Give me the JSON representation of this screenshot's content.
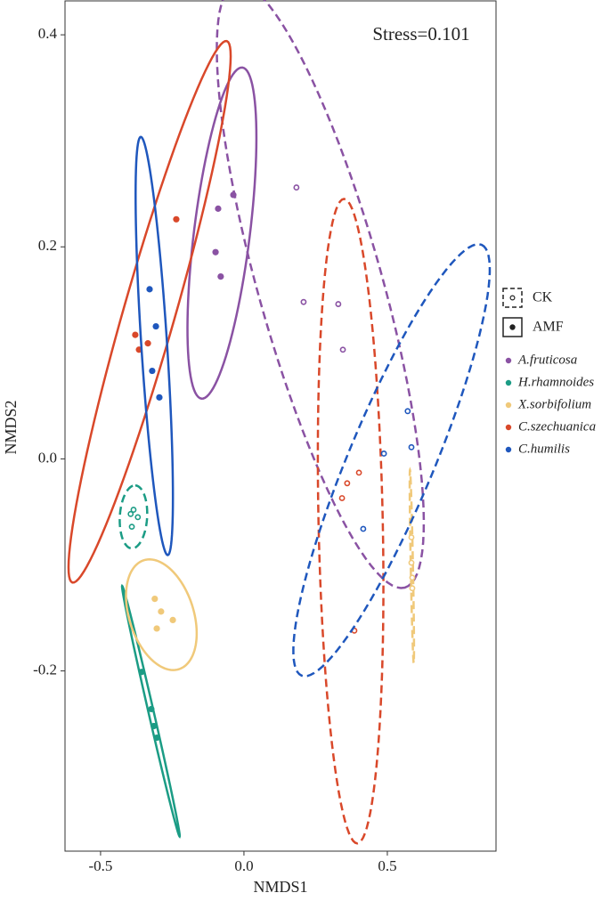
{
  "chart_data": {
    "type": "scatter",
    "annotation": "Stress=0.101",
    "x_label": "NMDS1",
    "y_label": "NMDS2",
    "xlim": [
      -0.624,
      0.879
    ],
    "ylim": [
      -0.37,
      0.432
    ],
    "xticks": [
      -0.5,
      {
        "value": 0,
        "label": "0.0"
      },
      0.5
    ],
    "yticks": [
      -0.2,
      {
        "value": 0,
        "label": "0.0"
      },
      0.2,
      0.4
    ],
    "grid": false,
    "treatments": [
      {
        "name": "CK",
        "dashed": true,
        "filled": false
      },
      {
        "name": "AMF",
        "dashed": false,
        "filled": true
      }
    ],
    "series": [
      {
        "name": "A.fruticosa",
        "color": "#8a52a3",
        "groups": [
          {
            "x": [
              0.183,
              0.208,
              0.329,
              0.345
            ],
            "y": [
              0.256,
              0.148,
              0.146,
              0.103
            ]
          },
          {
            "x": [
              -0.09,
              -0.037,
              -0.099,
              -0.081
            ],
            "y": [
              0.236,
              0.249,
              0.195,
              0.172
            ]
          }
        ]
      },
      {
        "name": "H.rhamnoides",
        "color": "#1b9c85",
        "groups": [
          {
            "x": [
              -0.385,
              -0.37,
              -0.391,
              -0.395
            ],
            "y": [
              -0.048,
              -0.055,
              -0.064,
              -0.052
            ]
          },
          {
            "x": [
              -0.357,
              -0.323,
              -0.314,
              -0.304
            ],
            "y": [
              -0.201,
              -0.236,
              -0.252,
              -0.263
            ]
          }
        ]
      },
      {
        "name": "X.sorbifolium",
        "color": "#f0c97a",
        "groups": [
          {
            "x": [
              0.584,
              0.584,
              0.587,
              0.587
            ],
            "y": [
              -0.074,
              -0.098,
              -0.112,
              -0.122
            ]
          },
          {
            "x": [
              -0.311,
              -0.289,
              -0.248,
              -0.304
            ],
            "y": [
              -0.132,
              -0.144,
              -0.152,
              -0.16
            ]
          }
        ]
      },
      {
        "name": "C.szechuanica",
        "color": "#d9482a",
        "groups": [
          {
            "x": [
              0.36,
              0.401,
              0.342,
              0.385
            ],
            "y": [
              -0.023,
              -0.013,
              -0.037,
              -0.162
            ]
          },
          {
            "x": [
              -0.236,
              -0.379,
              -0.335,
              -0.366
            ],
            "y": [
              0.226,
              0.117,
              0.109,
              0.103
            ]
          }
        ]
      },
      {
        "name": "C.humilis",
        "color": "#1f57bd",
        "groups": [
          {
            "x": [
              0.571,
              0.584,
              0.488,
              0.416
            ],
            "y": [
              0.045,
              0.011,
              0.005,
              -0.066
            ]
          },
          {
            "x": [
              -0.329,
              -0.307,
              -0.32,
              -0.295
            ],
            "y": [
              0.16,
              0.125,
              0.083,
              0.058
            ]
          }
        ]
      }
    ]
  }
}
